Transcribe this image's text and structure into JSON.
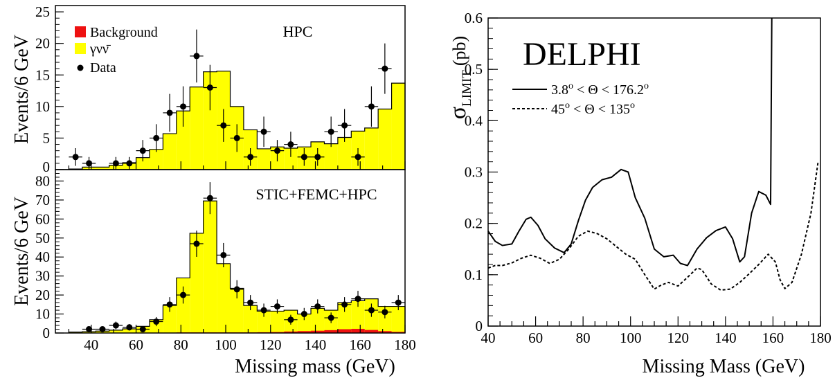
{
  "chart_data": [
    {
      "type": "bar",
      "panel": "top-left",
      "xlabel": "",
      "ylabel": "Events/6 GeV",
      "xlim": [
        24,
        180
      ],
      "ylim": [
        0,
        26
      ],
      "yticks": [
        0,
        5,
        10,
        15,
        20,
        25
      ],
      "grid": false,
      "label": "HPC",
      "legend_position": "top-left",
      "legend": {
        "background": "Background",
        "signal": "γνν̄",
        "data": "Data"
      },
      "colors": {
        "background": "#ee1111",
        "signal": "#ffff00"
      },
      "bins": {
        "edges": [
          30,
          36,
          42,
          48,
          54,
          60,
          66,
          72,
          78,
          84,
          90,
          96,
          102,
          108,
          114,
          120,
          126,
          132,
          138,
          144,
          150,
          156,
          162,
          168,
          174,
          180
        ],
        "signal": [
          0.1,
          0.4,
          0.4,
          0.7,
          1.1,
          1.9,
          3.2,
          5.7,
          9.3,
          13.1,
          15.5,
          15.6,
          10.0,
          6.3,
          3.3,
          3.6,
          3.4,
          3.6,
          4.4,
          4.1,
          5.1,
          6.1,
          6.6,
          9.6,
          13.7
        ],
        "background": []
      },
      "data_points": [
        {
          "x": 33,
          "y": 2,
          "err": 1.4
        },
        {
          "x": 39,
          "y": 1,
          "err": 1.0
        },
        {
          "x": 51,
          "y": 1,
          "err": 1.0
        },
        {
          "x": 57,
          "y": 1,
          "err": 1.0
        },
        {
          "x": 63,
          "y": 3,
          "err": 1.7
        },
        {
          "x": 69,
          "y": 5,
          "err": 2.2
        },
        {
          "x": 75,
          "y": 9,
          "err": 3.0
        },
        {
          "x": 81,
          "y": 10,
          "err": 3.2
        },
        {
          "x": 87,
          "y": 18,
          "err": 4.2
        },
        {
          "x": 93,
          "y": 13,
          "err": 3.6
        },
        {
          "x": 99,
          "y": 7,
          "err": 2.6
        },
        {
          "x": 105,
          "y": 5,
          "err": 2.2
        },
        {
          "x": 111,
          "y": 2,
          "err": 1.4
        },
        {
          "x": 117,
          "y": 6,
          "err": 2.4
        },
        {
          "x": 123,
          "y": 3,
          "err": 1.7
        },
        {
          "x": 129,
          "y": 4,
          "err": 2.0
        },
        {
          "x": 135,
          "y": 2,
          "err": 1.4
        },
        {
          "x": 141,
          "y": 2,
          "err": 1.4
        },
        {
          "x": 147,
          "y": 6,
          "err": 2.4
        },
        {
          "x": 153,
          "y": 7,
          "err": 2.6
        },
        {
          "x": 159,
          "y": 2,
          "err": 1.4
        },
        {
          "x": 165,
          "y": 10,
          "err": 3.2
        },
        {
          "x": 171,
          "y": 16,
          "err": 4.0
        }
      ]
    },
    {
      "type": "bar",
      "panel": "bottom-left",
      "xlabel": "Missing mass (GeV)",
      "ylabel": "Events/6 GeV",
      "xlim": [
        24,
        180
      ],
      "ylim": [
        0,
        86
      ],
      "xticks": [
        40,
        60,
        80,
        100,
        120,
        140,
        160,
        180
      ],
      "yticks": [
        0,
        10,
        20,
        30,
        40,
        50,
        60,
        70,
        80
      ],
      "grid": false,
      "label": "STIC+FEMC+HPC",
      "colors": {
        "background": "#ee1111",
        "signal": "#ffff00"
      },
      "bins": {
        "edges": [
          30,
          36,
          42,
          48,
          54,
          60,
          66,
          72,
          78,
          84,
          90,
          96,
          102,
          108,
          114,
          120,
          126,
          132,
          138,
          144,
          150,
          156,
          162,
          168,
          174,
          180
        ],
        "signal": [
          0.5,
          0.7,
          1.0,
          1.5,
          2.2,
          3.5,
          7.0,
          14.5,
          29.0,
          52.5,
          69.5,
          36.5,
          23.5,
          14.5,
          11.5,
          11.5,
          12.0,
          10.0,
          13.0,
          12.0,
          16.0,
          17.0,
          18.0,
          14.0,
          14.0
        ],
        "background": [
          0.1,
          0.1,
          0.1,
          0.1,
          0.1,
          0.2,
          0.2,
          0.2,
          0.3,
          0.3,
          0.3,
          0.3,
          0.3,
          0.3,
          0.4,
          0.5,
          0.8,
          1.0,
          1.2,
          1.5,
          2.0,
          2.2,
          1.6,
          1.0,
          0.6
        ]
      },
      "data_points": [
        {
          "x": 39,
          "y": 2,
          "err": 1.4
        },
        {
          "x": 45,
          "y": 2,
          "err": 1.4
        },
        {
          "x": 51,
          "y": 4,
          "err": 2.0
        },
        {
          "x": 57,
          "y": 3,
          "err": 1.7
        },
        {
          "x": 63,
          "y": 2,
          "err": 1.4
        },
        {
          "x": 69,
          "y": 6,
          "err": 2.4
        },
        {
          "x": 75,
          "y": 15,
          "err": 3.9
        },
        {
          "x": 81,
          "y": 20,
          "err": 4.5
        },
        {
          "x": 87,
          "y": 47,
          "err": 6.9
        },
        {
          "x": 93,
          "y": 71,
          "err": 8.4
        },
        {
          "x": 99,
          "y": 41,
          "err": 6.4
        },
        {
          "x": 105,
          "y": 23,
          "err": 4.8
        },
        {
          "x": 111,
          "y": 16,
          "err": 4.0
        },
        {
          "x": 117,
          "y": 12,
          "err": 3.5
        },
        {
          "x": 123,
          "y": 14,
          "err": 3.7
        },
        {
          "x": 129,
          "y": 7,
          "err": 2.6
        },
        {
          "x": 135,
          "y": 10,
          "err": 3.2
        },
        {
          "x": 141,
          "y": 14,
          "err": 3.7
        },
        {
          "x": 147,
          "y": 8,
          "err": 2.8
        },
        {
          "x": 153,
          "y": 15,
          "err": 3.9
        },
        {
          "x": 159,
          "y": 18,
          "err": 4.2
        },
        {
          "x": 165,
          "y": 12,
          "err": 3.5
        },
        {
          "x": 171,
          "y": 11,
          "err": 3.3
        },
        {
          "x": 177,
          "y": 16,
          "err": 4.0
        }
      ]
    },
    {
      "type": "line",
      "panel": "right",
      "title": "DELPHI",
      "xlabel": "Missing Mass (GeV)",
      "ylabel": "σLIMIT (pb)",
      "ylabel_main": "σ",
      "ylabel_sub": "LIMIT",
      "ylabel_unit": "(pb)",
      "xlim": [
        40,
        180
      ],
      "ylim": [
        0,
        0.6
      ],
      "xticks": [
        40,
        60,
        80,
        100,
        120,
        140,
        160,
        180
      ],
      "yticks": [
        0,
        0.1,
        0.2,
        0.3,
        0.4,
        0.5,
        0.6
      ],
      "grid": false,
      "legend_position": "top-left",
      "series": [
        {
          "name": "3.8° < Θ < 176.2°",
          "name_parts": [
            "3.8",
            "o",
            " < Θ < 176.2",
            "o"
          ],
          "style": "solid",
          "x": [
            40,
            43,
            46,
            50,
            53,
            56,
            58,
            61,
            64,
            68,
            72,
            75,
            78,
            81,
            84,
            88,
            92,
            96,
            99,
            102,
            106,
            110,
            114,
            118,
            121,
            124,
            128,
            132,
            136,
            140,
            143,
            146,
            148,
            151,
            154,
            157,
            159,
            159,
            159.5
          ],
          "y": [
            0.185,
            0.165,
            0.157,
            0.16,
            0.185,
            0.208,
            0.212,
            0.196,
            0.17,
            0.152,
            0.143,
            0.16,
            0.205,
            0.245,
            0.27,
            0.285,
            0.29,
            0.305,
            0.3,
            0.25,
            0.21,
            0.15,
            0.135,
            0.138,
            0.122,
            0.118,
            0.15,
            0.172,
            0.186,
            0.193,
            0.17,
            0.125,
            0.135,
            0.22,
            0.262,
            0.255,
            0.237,
            0.237,
            0.6
          ]
        },
        {
          "name": "45° < Θ < 135°",
          "name_parts": [
            "45",
            "o",
            " < Θ < 135",
            "o"
          ],
          "style": "dashed",
          "x": [
            40,
            43,
            46,
            50,
            54,
            58,
            62,
            66,
            70,
            74,
            78,
            82,
            86,
            90,
            94,
            98,
            102,
            106,
            110,
            113,
            116,
            120,
            124,
            128,
            130,
            134,
            138,
            142,
            146,
            150,
            154,
            158,
            161,
            163,
            165,
            168,
            172,
            176,
            179
          ],
          "y": [
            0.113,
            0.118,
            0.118,
            0.123,
            0.132,
            0.138,
            0.132,
            0.122,
            0.13,
            0.15,
            0.175,
            0.185,
            0.18,
            0.17,
            0.155,
            0.14,
            0.13,
            0.1,
            0.072,
            0.08,
            0.085,
            0.078,
            0.095,
            0.113,
            0.11,
            0.082,
            0.07,
            0.072,
            0.085,
            0.102,
            0.12,
            0.14,
            0.125,
            0.09,
            0.073,
            0.085,
            0.14,
            0.22,
            0.32
          ]
        }
      ]
    }
  ]
}
